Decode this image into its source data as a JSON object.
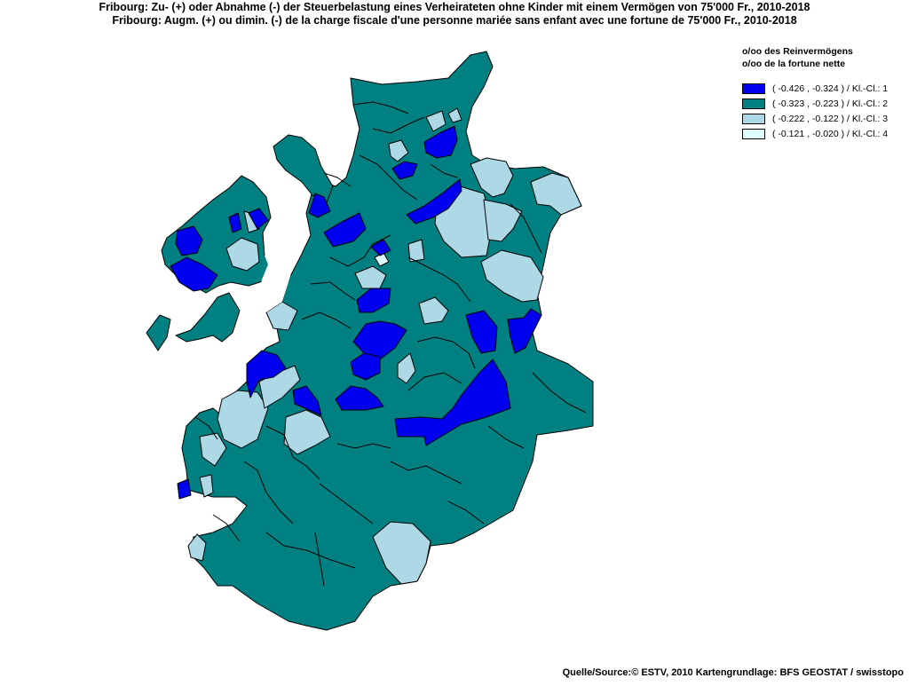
{
  "title": {
    "line1": "Fribourg: Zu- (+) oder Abnahme (-) der Steuerbelastung  eines Verheirateten ohne Kinder mit einem Vermögen von 75'000 Fr., 2010-2018",
    "line2": "Fribourg: Augm. (+) ou dimin. (-) de la charge fiscale d'une personne mariée sans enfant avec une fortune de 75'000 Fr., 2010-2018"
  },
  "legend": {
    "heading_de": "o/oo des Reinvermögens",
    "heading_fr": "o/oo de la fortune nette",
    "classes": [
      {
        "label": "( -0.426 , -0.324 ) / Kl.-Cl.: 1",
        "color": "#0000ee"
      },
      {
        "label": "( -0.323 , -0.223 ) / Kl.-Cl.: 2",
        "color": "#008080"
      },
      {
        "label": "( -0.222 , -0.122 ) / Kl.-Cl.: 3",
        "color": "#add8e6"
      },
      {
        "label": "( -0.121 , -0.020 ) / Kl.-Cl.: 4",
        "color": "#e0ffff"
      }
    ]
  },
  "source": "Quelle/Source:© ESTV, 2010 Kartengrundlage: BFS GEOSTAT / swisstopo"
}
